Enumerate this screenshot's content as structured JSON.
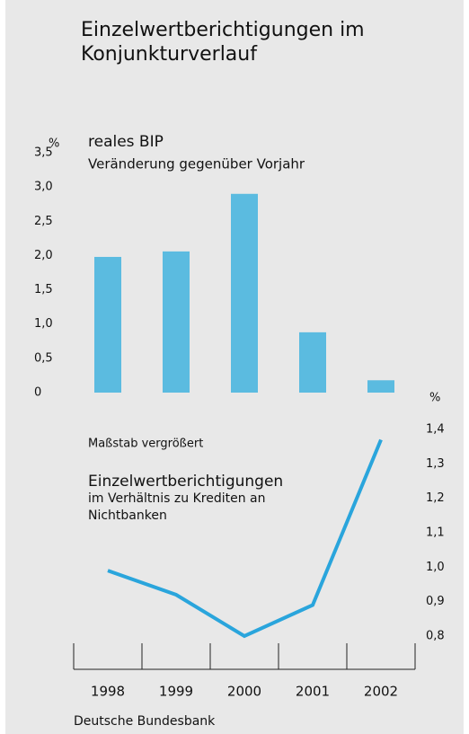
{
  "chart_data": {
    "type": "bar",
    "title": "Einzelwertberichtigungen im Konjunkturverlauf",
    "categories": [
      "1998",
      "1999",
      "2000",
      "2001",
      "2002"
    ],
    "y_unit": "%",
    "y2_unit": "%",
    "note": "Maßstab vergrößert",
    "series": [
      {
        "name": "reales BIP",
        "description": "Veränderung gegenüber Vorjahr",
        "color": "#5bbbe0",
        "values": [
          1.98,
          2.06,
          2.9,
          0.88,
          0.18
        ]
      },
      {
        "name": "Einzelwertberichtigungen",
        "description": "im Verhältnis zu Krediten an Nichtbanken",
        "type": "line",
        "axis": "y2",
        "color": "#2aa5dc",
        "values": [
          0.99,
          0.92,
          0.8,
          0.89,
          1.37
        ]
      }
    ],
    "ylim": [
      0,
      3.5
    ],
    "yticks": [
      0,
      {
        "value": 0.5,
        "label": "0,5"
      },
      {
        "value": 1,
        "label": "1,0"
      },
      {
        "value": 1.5,
        "label": "1,5"
      },
      {
        "value": 2,
        "label": "2,0"
      },
      {
        "value": 2.5,
        "label": "2,5"
      },
      {
        "value": 3,
        "label": "3,0"
      },
      {
        "value": 3.5,
        "label": "3,5"
      }
    ],
    "y2lim": [
      0.8,
      1.4
    ],
    "y2ticks": [
      {
        "value": 0.8,
        "label": "0,8"
      },
      {
        "value": 0.9,
        "label": "0,9"
      },
      {
        "value": 1,
        "label": "1,0"
      },
      {
        "value": 1.1,
        "label": "1,1"
      },
      {
        "value": 1.2,
        "label": "1,2"
      },
      {
        "value": 1.3,
        "label": "1,3"
      },
      {
        "value": 1.4,
        "label": "1,4"
      }
    ],
    "grid": false,
    "source": "Deutsche Bundesbank"
  }
}
